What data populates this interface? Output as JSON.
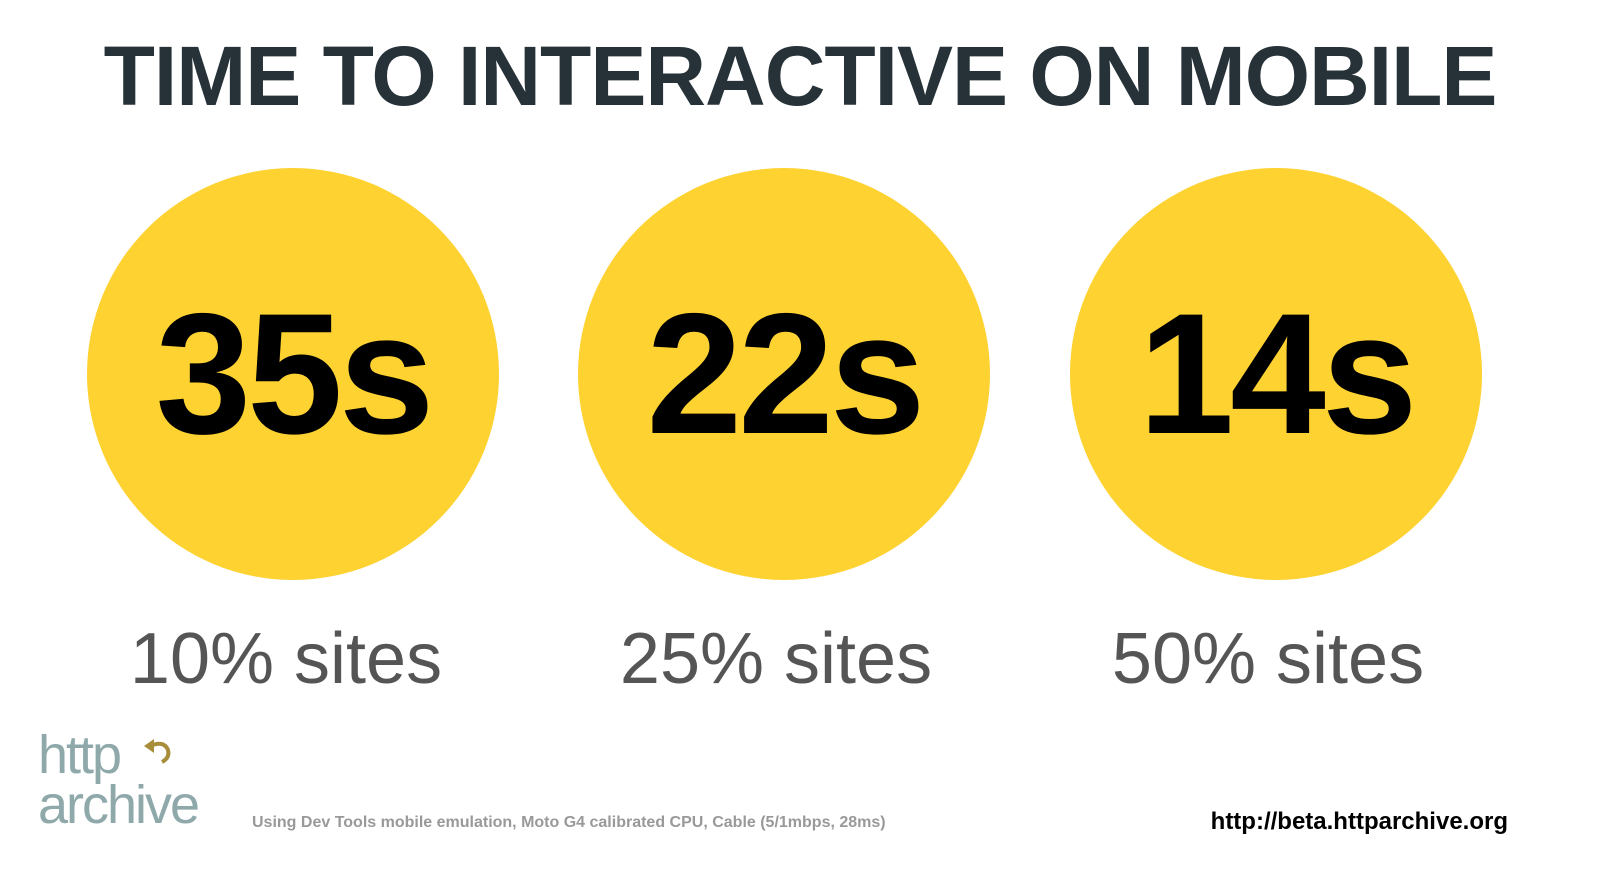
{
  "title": "TIME TO INTERACTIVE ON MOBILE",
  "accent_color": "#FDD231",
  "stats": [
    {
      "value": "35s",
      "label": "10% sites"
    },
    {
      "value": "22s",
      "label": "25% sites"
    },
    {
      "value": "14s",
      "label": "50% sites"
    }
  ],
  "footer": {
    "logo_text": [
      "http",
      "archive"
    ],
    "note": "Using Dev Tools mobile emulation, Moto G4 calibrated CPU, Cable (5/1mbps, 28ms)",
    "url": "http://beta.httparchive.org"
  }
}
